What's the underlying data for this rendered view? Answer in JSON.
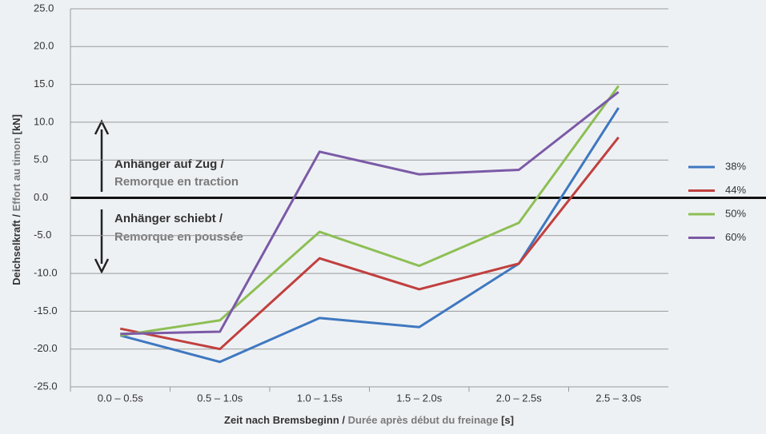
{
  "chart_data": {
    "type": "line",
    "y_label": [
      "Deichselkraft / ",
      "Effort au timon",
      " [kN]"
    ],
    "x_label": [
      "Zeit nach Bremsbeginn / ",
      "Durée après début du freinage",
      " [s]"
    ],
    "annotations": [
      [
        "Anhänger auf Zug /",
        "Remorque en traction"
      ],
      [
        "Anhänger schiebt /",
        "Remorque en poussée"
      ]
    ],
    "categories": [
      "0.0 – 0.5s",
      "0.5 – 1.0s",
      "1.0 – 1.5s",
      "1.5 – 2.0s",
      "2.0 – 2.5s",
      "2.5 – 3.0s"
    ],
    "series": [
      {
        "name": "38%",
        "color": "#3f78c0",
        "values": [
          -18.2,
          -21.7,
          -15.9,
          -17.1,
          -8.7,
          11.9
        ]
      },
      {
        "name": "44%",
        "color": "#c0403f",
        "values": [
          -17.3,
          -20.0,
          -8.0,
          -12.1,
          -8.7,
          8.0
        ]
      },
      {
        "name": "50%",
        "color": "#8dbf55",
        "values": [
          -18.2,
          -16.2,
          -4.5,
          -9.0,
          -3.3,
          14.8
        ]
      },
      {
        "name": "60%",
        "color": "#7b5aa6",
        "values": [
          -18.0,
          -17.7,
          6.1,
          3.1,
          3.7,
          14.0
        ]
      }
    ],
    "ylim": [
      -25,
      25
    ],
    "yticks": [
      {
        "value": 25,
        "label": "25.0"
      },
      {
        "value": 20,
        "label": "20.0"
      },
      {
        "value": 15,
        "label": "15.0"
      },
      {
        "value": 10,
        "label": "10.0"
      },
      {
        "value": 5,
        "label": "5.0"
      },
      {
        "value": 0,
        "label": "0.0"
      },
      {
        "value": -5,
        "label": "-5.0"
      },
      {
        "value": -10,
        "label": "-10.0"
      },
      {
        "value": -15,
        "label": "-15.0"
      },
      {
        "value": -20,
        "label": "-20.0"
      },
      {
        "value": -25,
        "label": "-25.0"
      }
    ],
    "grid": true,
    "legend": "right"
  }
}
